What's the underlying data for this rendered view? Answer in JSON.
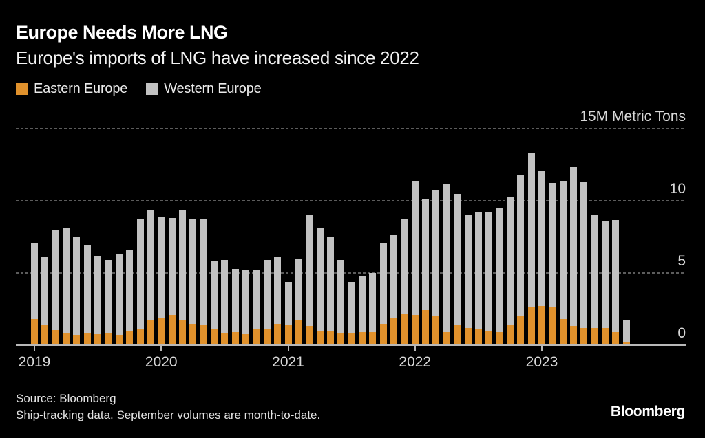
{
  "header": {
    "title": "Europe Needs More LNG",
    "subtitle": "Europe's imports of LNG have increased since 2022"
  },
  "chart_data": {
    "type": "bar",
    "stacked": true,
    "title": "Europe Needs More LNG",
    "subtitle": "Europe's imports of LNG have increased since 2022",
    "ylabel": "15M Metric Tons",
    "ylim": [
      0,
      15
    ],
    "yticks": [
      0,
      5,
      10,
      15
    ],
    "ytick_labels": [
      "0",
      "5",
      "10",
      "15M Metric Tons"
    ],
    "xtick_labels": [
      "2019",
      "2020",
      "2021",
      "2022",
      "2023"
    ],
    "xticks_month_index": [
      0,
      12,
      24,
      36,
      48
    ],
    "grid": "horizontal dotted, solid baseline at 0",
    "legend_position": "top-left",
    "background_color": "#000000",
    "categories": [
      "2019-01",
      "2019-02",
      "2019-03",
      "2019-04",
      "2019-05",
      "2019-06",
      "2019-07",
      "2019-08",
      "2019-09",
      "2019-10",
      "2019-11",
      "2019-12",
      "2020-01",
      "2020-02",
      "2020-03",
      "2020-04",
      "2020-05",
      "2020-06",
      "2020-07",
      "2020-08",
      "2020-09",
      "2020-10",
      "2020-11",
      "2020-12",
      "2021-01",
      "2021-02",
      "2021-03",
      "2021-04",
      "2021-05",
      "2021-06",
      "2021-07",
      "2021-08",
      "2021-09",
      "2021-10",
      "2021-11",
      "2021-12",
      "2022-01",
      "2022-02",
      "2022-03",
      "2022-04",
      "2022-05",
      "2022-06",
      "2022-07",
      "2022-08",
      "2022-09",
      "2022-10",
      "2022-11",
      "2022-12",
      "2023-01",
      "2023-02",
      "2023-03",
      "2023-04",
      "2023-05",
      "2023-06",
      "2023-07",
      "2023-08",
      "2023-09"
    ],
    "series": [
      {
        "name": "Eastern Europe",
        "color": "#E0912C",
        "values": [
          1.8,
          1.4,
          1.05,
          0.8,
          0.7,
          0.85,
          0.75,
          0.8,
          0.7,
          0.95,
          1.15,
          1.7,
          1.9,
          2.1,
          1.75,
          1.5,
          1.4,
          1.1,
          0.85,
          0.9,
          0.75,
          1.1,
          1.15,
          1.5,
          1.4,
          1.7,
          1.35,
          0.95,
          0.95,
          0.8,
          0.8,
          0.9,
          0.9,
          1.5,
          1.9,
          2.2,
          2.1,
          2.45,
          2.0,
          0.9,
          1.4,
          1.2,
          1.1,
          1.0,
          0.9,
          1.4,
          2.05,
          2.6,
          2.7,
          2.6,
          1.8,
          1.35,
          1.2,
          1.2,
          1.2,
          0.9,
          0.2
        ]
      },
      {
        "name": "Western Europe",
        "color": "#C2C2C2",
        "values": [
          5.3,
          4.7,
          6.95,
          7.3,
          6.8,
          6.05,
          5.45,
          5.1,
          5.6,
          5.65,
          7.55,
          7.7,
          7.0,
          6.7,
          7.65,
          7.2,
          7.35,
          4.7,
          5.05,
          4.4,
          4.5,
          4.1,
          4.75,
          4.6,
          3.0,
          4.3,
          7.65,
          7.15,
          6.55,
          5.1,
          3.6,
          3.9,
          4.1,
          5.6,
          5.7,
          6.5,
          9.3,
          7.65,
          8.75,
          10.25,
          9.1,
          7.8,
          8.1,
          8.25,
          8.6,
          8.9,
          9.75,
          10.7,
          9.35,
          8.65,
          9.6,
          11.0,
          10.15,
          7.8,
          7.35,
          7.75,
          1.55
        ]
      }
    ]
  },
  "footer": {
    "source": "Source: Bloomberg",
    "note": "Ship-tracking data. September volumes are month-to-date.",
    "logo": "Bloomberg"
  },
  "colors": {
    "background": "#000000",
    "eastern_europe": "#E0912C",
    "western_europe": "#C2C2C2",
    "gridline": "#5C5C5C",
    "baseline": "#B8B8B8",
    "text_primary": "#FFFFFF",
    "text_secondary": "#D8D8D8"
  }
}
